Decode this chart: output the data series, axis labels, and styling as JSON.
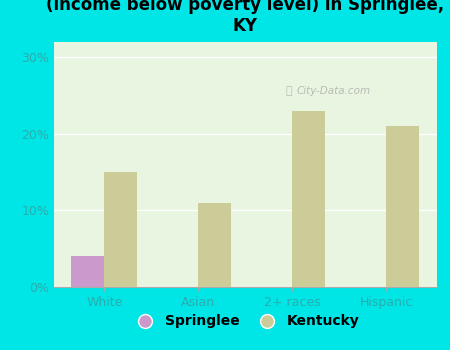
{
  "title": "Breakdown of poor residents within races\n(income below poverty level) in Springlee,\nKY",
  "categories": [
    "White",
    "Asian",
    "2+ races",
    "Hispanic"
  ],
  "springlee_values": [
    4.0,
    0,
    0,
    0
  ],
  "kentucky_values": [
    15.0,
    11.0,
    23.0,
    21.0
  ],
  "springlee_color": "#cc99cc",
  "kentucky_color": "#cccc99",
  "background_color": "#00e5e5",
  "plot_bg_color": "#e8f5e0",
  "yticks": [
    0,
    10,
    20,
    30
  ],
  "ylim": [
    0,
    32
  ],
  "bar_width": 0.35,
  "title_fontsize": 12,
  "tick_label_color": "#2aadad",
  "legend_labels": [
    "Springlee",
    "Kentucky"
  ],
  "watermark": "City-Data.com"
}
